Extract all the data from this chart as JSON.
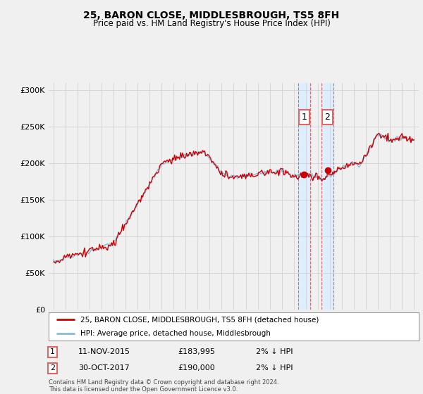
{
  "title": "25, BARON CLOSE, MIDDLESBROUGH, TS5 8FH",
  "subtitle": "Price paid vs. HM Land Registry's House Price Index (HPI)",
  "ylabel_ticks": [
    "£0",
    "£50K",
    "£100K",
    "£150K",
    "£200K",
    "£250K",
    "£300K"
  ],
  "ytick_values": [
    0,
    50000,
    100000,
    150000,
    200000,
    250000,
    300000
  ],
  "ylim": [
    0,
    310000
  ],
  "sale1_year": 2015.875,
  "sale1_price": 183995,
  "sale2_year": 2017.792,
  "sale2_price": 190000,
  "legend_line1": "25, BARON CLOSE, MIDDLESBROUGH, TS5 8FH (detached house)",
  "legend_line2": "HPI: Average price, detached house, Middlesbrough",
  "footnote": "Contains HM Land Registry data © Crown copyright and database right 2024.\nThis data is licensed under the Open Government Licence v3.0.",
  "price_color": "#cc0000",
  "hpi_color": "#88bbdd",
  "highlight_color_bg": "#ddeeff",
  "highlight_color_border": "#dd6666",
  "background_color": "#f0f0f0",
  "grid_color": "#cccccc",
  "xlim_left": 1994.6,
  "xlim_right": 2025.4
}
